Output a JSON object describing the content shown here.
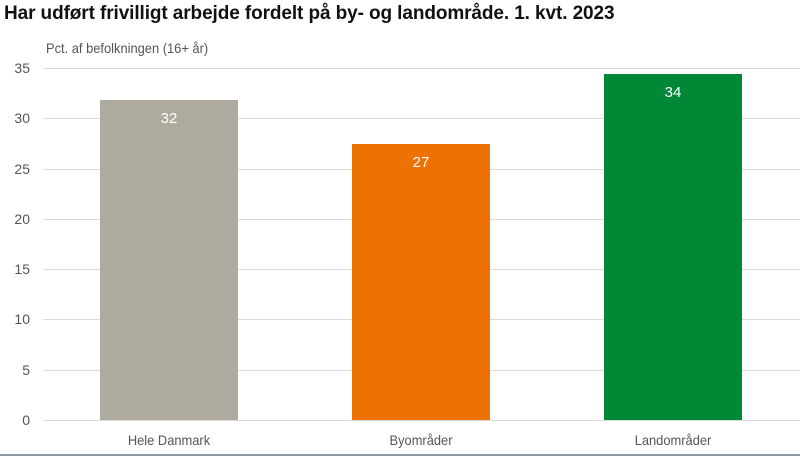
{
  "chart_data": {
    "type": "bar",
    "title": "Har udført frivilligt arbejde fordelt på by- og landområde. 1. kvt. 2023",
    "xlabel": "",
    "ylabel": "Pct. af befolkningen (16+ år)",
    "ylim": [
      0,
      35
    ],
    "yticks": [
      0,
      5,
      10,
      15,
      20,
      25,
      30,
      35
    ],
    "grid": true,
    "legend": null,
    "categories": [
      "Hele Danmark",
      "Byområder",
      "Landområder"
    ],
    "values": [
      32,
      27,
      34
    ],
    "value_labels": [
      "32",
      "27",
      "34"
    ],
    "bar_heights_estimated": [
      31.8,
      27.4,
      34.4
    ],
    "colors": [
      "#aeab9e",
      "#ee7203",
      "#008837"
    ]
  }
}
